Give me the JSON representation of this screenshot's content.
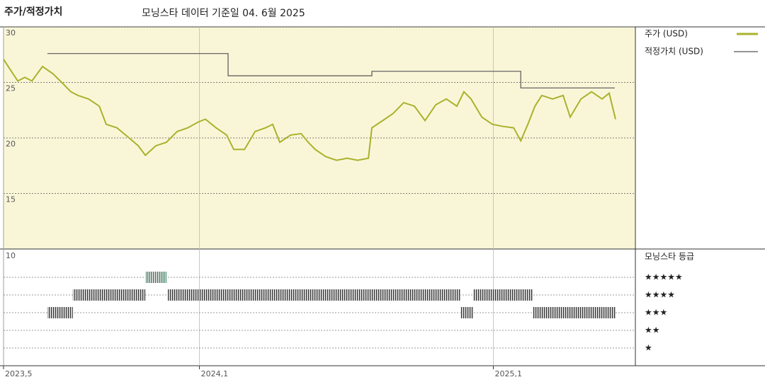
{
  "chart_data": {
    "type": "line",
    "title": "주가/적정가치",
    "subtitle": "모닝스타 데이터 기준일 04. 6월 2025",
    "background": "#f9f6d8",
    "grid": true,
    "xlim": [
      0,
      25.8
    ],
    "xticks": [
      {
        "value": 0,
        "label": "2023,5"
      },
      {
        "value": 8,
        "label": "2024,1"
      },
      {
        "value": 20,
        "label": "2025,1"
      }
    ],
    "ylim": [
      10,
      30
    ],
    "yticks": [
      15,
      20,
      25,
      30
    ],
    "series": [
      {
        "name": "주가 (USD)",
        "color": "#a9b22b",
        "x": [
          0,
          0.29,
          0.58,
          0.87,
          1.16,
          1.59,
          2.02,
          2.46,
          2.75,
          3.04,
          3.47,
          3.91,
          4.19,
          4.63,
          5.06,
          5.5,
          5.79,
          6.22,
          6.65,
          7.09,
          7.52,
          7.95,
          8.24,
          8.68,
          9.11,
          9.4,
          9.84,
          10.27,
          10.7,
          10.99,
          11.28,
          11.72,
          12.15,
          12.44,
          12.73,
          13.16,
          13.6,
          14.03,
          14.46,
          14.9,
          15.04,
          15.48,
          15.91,
          16.34,
          16.78,
          17.21,
          17.65,
          18.08,
          18.51,
          18.8,
          19.09,
          19.53,
          19.96,
          20.39,
          20.83,
          21.12,
          21.41,
          21.7,
          21.98,
          22.42,
          22.85,
          23.14,
          23.58,
          24.01,
          24.44,
          24.73,
          24.99
        ],
        "values": [
          27.08,
          26.1,
          25.13,
          25.45,
          25.13,
          26.43,
          25.78,
          24.81,
          24.16,
          23.83,
          23.51,
          22.86,
          21.23,
          20.91,
          20.13,
          19.29,
          18.44,
          19.29,
          19.61,
          20.58,
          20.91,
          21.43,
          21.69,
          20.91,
          20.26,
          18.96,
          18.96,
          20.58,
          20.91,
          21.23,
          19.61,
          20.26,
          20.39,
          19.61,
          18.96,
          18.31,
          17.99,
          18.18,
          17.99,
          18.18,
          20.91,
          21.56,
          22.21,
          23.18,
          22.86,
          21.56,
          22.99,
          23.51,
          22.86,
          24.16,
          23.51,
          21.88,
          21.23,
          21.04,
          20.91,
          19.74,
          21.23,
          22.86,
          23.83,
          23.51,
          23.83,
          21.88,
          23.51,
          24.16,
          23.51,
          24.03,
          21.69
        ]
      },
      {
        "name": "적정가치 (USD)",
        "color": "#555555",
        "x": [
          1.79,
          9.17,
          9.17,
          15.04,
          15.04,
          21.12,
          21.12,
          24.96
        ],
        "values": [
          27.6,
          27.6,
          25.6,
          25.6,
          26.0,
          26.0,
          24.5,
          24.5
        ]
      }
    ],
    "ratings": {
      "title": "모닝스타 등급",
      "axis_label": "10",
      "levels": [
        {
          "stars": 5,
          "label": "★★★★★"
        },
        {
          "stars": 4,
          "label": "★★★★"
        },
        {
          "stars": 3,
          "label": "★★★"
        },
        {
          "stars": 2,
          "label": "★★"
        },
        {
          "stars": 1,
          "label": "★"
        }
      ],
      "segments": [
        {
          "start": 1.79,
          "end": 2.83,
          "stars": 3,
          "color": "#333333"
        },
        {
          "start": 2.83,
          "end": 5.79,
          "stars": 4,
          "color": "#333333"
        },
        {
          "start": 5.79,
          "end": 6.65,
          "stars": 5,
          "color": "#2f7f5a"
        },
        {
          "start": 6.71,
          "end": 18.66,
          "stars": 4,
          "color": "#333333"
        },
        {
          "start": 18.66,
          "end": 19.18,
          "stars": 3,
          "color": "#333333"
        },
        {
          "start": 19.18,
          "end": 21.61,
          "stars": 4,
          "color": "#333333"
        },
        {
          "start": 21.61,
          "end": 24.99,
          "stars": 3,
          "color": "#333333"
        }
      ]
    }
  }
}
